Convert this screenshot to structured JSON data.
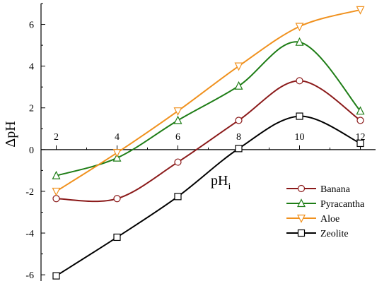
{
  "chart_data": {
    "type": "line",
    "xlabel": "pH",
    "xlabel_sub": "i",
    "ylabel": "ΔpH",
    "xlim": [
      1.5,
      12.5
    ],
    "ylim": [
      -6.3,
      7
    ],
    "x_ticks": [
      2,
      4,
      6,
      8,
      10,
      12
    ],
    "y_ticks": [
      -6,
      -4,
      -2,
      0,
      2,
      4,
      6
    ],
    "x_tick_labels": [
      "2",
      "4",
      "6",
      "8",
      "10",
      "12"
    ],
    "y_tick_labels": [
      "-6",
      "-4",
      "-2",
      "0",
      "2",
      "4",
      "6"
    ],
    "x_axis_crosses_y": 0,
    "grid": false,
    "legend_position": "bottom-right",
    "series": [
      {
        "name": "Banana",
        "color": "#8b1a1a",
        "marker": "circle",
        "x": [
          2,
          4,
          6,
          8,
          10,
          12
        ],
        "y": [
          -2.35,
          -2.35,
          -0.6,
          1.4,
          3.3,
          1.4
        ]
      },
      {
        "name": "Pyracantha",
        "color": "#1e7d16",
        "marker": "triangle-up",
        "x": [
          2,
          4,
          6,
          8,
          10,
          12
        ],
        "y": [
          -1.25,
          -0.4,
          1.4,
          3.05,
          5.15,
          1.85
        ]
      },
      {
        "name": "Aloe",
        "color": "#f0911e",
        "marker": "triangle-down",
        "x": [
          2,
          4,
          6,
          8,
          10,
          12
        ],
        "y": [
          -2.0,
          -0.15,
          1.85,
          4.0,
          5.9,
          6.7
        ]
      },
      {
        "name": "Zeolite",
        "color": "#000000",
        "marker": "square",
        "x": [
          2,
          4,
          6,
          8,
          10,
          12
        ],
        "y": [
          -6.05,
          -4.2,
          -2.25,
          0.05,
          1.6,
          0.3
        ]
      }
    ]
  }
}
